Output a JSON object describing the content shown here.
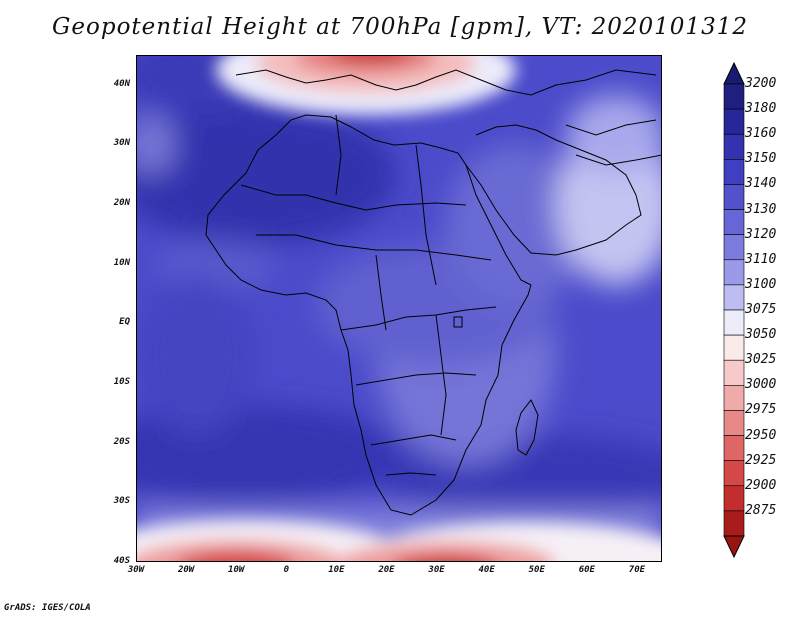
{
  "title": "Geopotential Height at 700hPa [gpm], VT: 2020101312",
  "footer": "GrADS: IGES/COLA",
  "map": {
    "lon_range": [
      -30,
      75
    ],
    "lat_range": [
      -40,
      45
    ],
    "lat_ticks": [
      {
        "value": 40,
        "label": "40N"
      },
      {
        "value": 30,
        "label": "30N"
      },
      {
        "value": 20,
        "label": "20N"
      },
      {
        "value": 10,
        "label": "10N"
      },
      {
        "value": 0,
        "label": "EQ"
      },
      {
        "value": -10,
        "label": "10S"
      },
      {
        "value": -20,
        "label": "20S"
      },
      {
        "value": -30,
        "label": "30S"
      },
      {
        "value": -40,
        "label": "40S"
      }
    ],
    "lon_ticks": [
      {
        "value": -30,
        "label": "30W"
      },
      {
        "value": -20,
        "label": "20W"
      },
      {
        "value": -10,
        "label": "10W"
      },
      {
        "value": 0,
        "label": "0"
      },
      {
        "value": 10,
        "label": "10E"
      },
      {
        "value": 20,
        "label": "20E"
      },
      {
        "value": 30,
        "label": "30E"
      },
      {
        "value": 40,
        "label": "40E"
      },
      {
        "value": 50,
        "label": "50E"
      },
      {
        "value": 60,
        "label": "60E"
      },
      {
        "value": 70,
        "label": "70E"
      }
    ]
  },
  "colorbar": {
    "levels": [
      {
        "label": "3200",
        "color": "#1f1f80"
      },
      {
        "label": "3180",
        "color": "#27279a"
      },
      {
        "label": "3160",
        "color": "#3333b0"
      },
      {
        "label": "3150",
        "color": "#3f3fc2"
      },
      {
        "label": "3140",
        "color": "#5252cc"
      },
      {
        "label": "3130",
        "color": "#6666d6"
      },
      {
        "label": "3120",
        "color": "#7c7cdf"
      },
      {
        "label": "3110",
        "color": "#9a9ae8"
      },
      {
        "label": "3100",
        "color": "#bdbdf1"
      },
      {
        "label": "3075",
        "color": "#ececfb"
      },
      {
        "label": "3050",
        "color": "#fbeaea"
      },
      {
        "label": "3025",
        "color": "#f6caca"
      },
      {
        "label": "3000",
        "color": "#efaaaa"
      },
      {
        "label": "2975",
        "color": "#e88888"
      },
      {
        "label": "2950",
        "color": "#e06666"
      },
      {
        "label": "2925",
        "color": "#d44848"
      },
      {
        "label": "2900",
        "color": "#c22e2e"
      },
      {
        "label": "2875",
        "color": "#a81c1c"
      }
    ],
    "top_arrow_color": "#1a1a70",
    "bottom_arrow_color": "#9a1414"
  }
}
